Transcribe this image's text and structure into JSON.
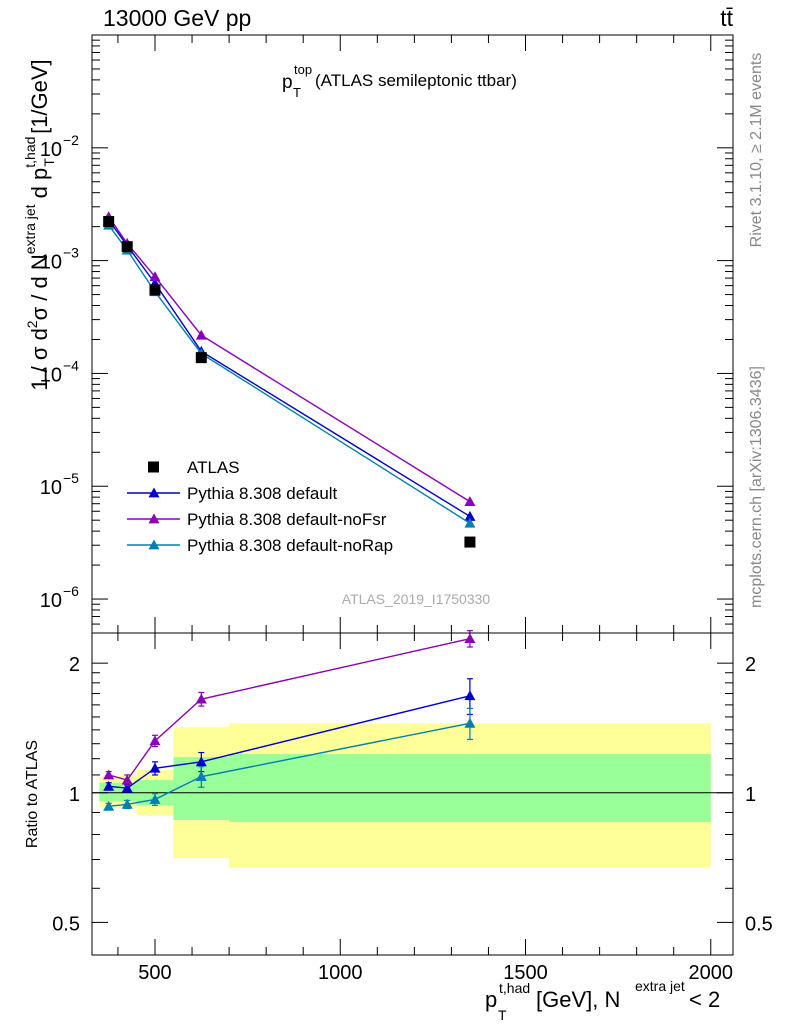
{
  "header": {
    "left": "13000 GeV pp",
    "right": "tt̄"
  },
  "side_labels": {
    "rivet": "Rivet 3.1.10, ≥ 2.1M events",
    "mcplots": "mcplots.cern.ch [arXiv:1306.3436]"
  },
  "chart_data": [
    {
      "type": "line",
      "title": {
        "main": "p",
        "sup": "top",
        "sub": "T",
        "rest": " (ATLAS semileptonic ttbar)"
      },
      "watermark": "ATLAS_2019_I1750330",
      "yscale": "log",
      "ylim": [
        5e-07,
        0.1
      ],
      "xlim": [
        330,
        2060
      ],
      "ylabel": {
        "part1": "1 / σ d",
        "sup2": "2",
        "part2": "σ /  d N",
        "sup_extra": "extra jet",
        "part3": " d p",
        "sup_had": "t,had",
        "sub_T": "T",
        "part4": " [1/GeV]"
      },
      "yticks": [
        {
          "value": 1e-06,
          "base": "10",
          "exp": "−6"
        },
        {
          "value": 1e-05,
          "base": "10",
          "exp": "−5"
        },
        {
          "value": 0.0001,
          "base": "10",
          "exp": "−4"
        },
        {
          "value": 0.001,
          "base": "10",
          "exp": "−3"
        },
        {
          "value": 0.01,
          "base": "10",
          "exp": "−2"
        }
      ],
      "legend_position": "center-left",
      "data": {
        "name": "ATLAS",
        "x": [
          375,
          425,
          500,
          625,
          1350
        ],
        "y": [
          0.00222,
          0.00133,
          0.00055,
          0.000138,
          3.2e-06
        ],
        "color": "#000000",
        "marker": "square"
      },
      "series": [
        {
          "name": "Pythia 8.308 default",
          "color": "#0000cc",
          "marker": "triangle",
          "x": [
            375,
            425,
            500,
            625,
            1350
          ],
          "y": [
            0.00229,
            0.00136,
            0.00063,
            0.000157,
            5.4e-06
          ]
        },
        {
          "name": "Pythia 8.308 default-noFsr",
          "color": "#8a00b8",
          "marker": "triangle",
          "x": [
            375,
            425,
            500,
            625,
            1350
          ],
          "y": [
            0.00245,
            0.00142,
            0.00072,
            0.000218,
            7.3e-06
          ]
        },
        {
          "name": "Pythia 8.308 default-noRap",
          "color": "#0080b0",
          "marker": "triangle",
          "x": [
            375,
            425,
            500,
            625,
            1350
          ],
          "y": [
            0.00206,
            0.00124,
            0.00053,
            0.00015,
            4.7e-06
          ]
        }
      ]
    },
    {
      "type": "line",
      "ylabel": "Ratio to ATLAS",
      "yscale": "log",
      "ylim": [
        0.42,
        2.35
      ],
      "xlim": [
        330,
        2060
      ],
      "yticks": [
        {
          "value": 0.5,
          "label": "0.5"
        },
        {
          "value": 1,
          "label": "1"
        },
        {
          "value": 2,
          "label": "2"
        }
      ],
      "xticks": [
        {
          "value": 500,
          "label": "500"
        },
        {
          "value": 1000,
          "label": "1000"
        },
        {
          "value": 1500,
          "label": "1500"
        },
        {
          "value": 2000,
          "label": "2000"
        }
      ],
      "xlabel": {
        "p": "p",
        "sup_had": "t,had",
        "sub_T": "T",
        "mid": " [GeV], N",
        "sup_extra": "extra jet",
        "end": " < 2"
      },
      "uncertainty_bands": [
        {
          "x0": 350,
          "x1": 400,
          "green": [
            0.955,
            1.055
          ],
          "yellow": [
            0.925,
            1.09
          ]
        },
        {
          "x0": 400,
          "x1": 450,
          "green": [
            0.955,
            1.055
          ],
          "yellow": [
            0.92,
            1.095
          ]
        },
        {
          "x0": 450,
          "x1": 550,
          "green": [
            0.935,
            1.07
          ],
          "yellow": [
            0.885,
            1.13
          ]
        },
        {
          "x0": 550,
          "x1": 700,
          "green": [
            0.865,
            1.21
          ],
          "yellow": [
            0.705,
            1.42
          ]
        },
        {
          "x0": 700,
          "x1": 2000,
          "green": [
            0.855,
            1.23
          ],
          "yellow": [
            0.67,
            1.45
          ]
        }
      ],
      "band_colors": {
        "green": "#99ff99",
        "yellow": "#ffff99"
      },
      "reference_line": 1,
      "series": [
        {
          "name": "Pythia 8.308 default",
          "color": "#0000cc",
          "x": [
            375,
            425,
            500,
            625,
            1350
          ],
          "y": [
            1.035,
            1.025,
            1.14,
            1.18,
            1.68
          ],
          "err": [
            0.02,
            0.02,
            0.04,
            0.06,
            0.16
          ]
        },
        {
          "name": "Pythia 8.308 default-noFsr",
          "color": "#8a00b8",
          "x": [
            375,
            425,
            500,
            625,
            1350
          ],
          "y": [
            1.1,
            1.07,
            1.32,
            1.65,
            2.28
          ],
          "err": [
            0.02,
            0.03,
            0.04,
            0.06,
            0.1
          ]
        },
        {
          "name": "Pythia 8.308 default-noRap",
          "color": "#0080b0",
          "x": [
            375,
            425,
            500,
            625,
            1350
          ],
          "y": [
            0.93,
            0.94,
            0.965,
            1.09,
            1.45
          ],
          "err": [
            0.015,
            0.02,
            0.03,
            0.06,
            0.12
          ]
        }
      ]
    }
  ]
}
